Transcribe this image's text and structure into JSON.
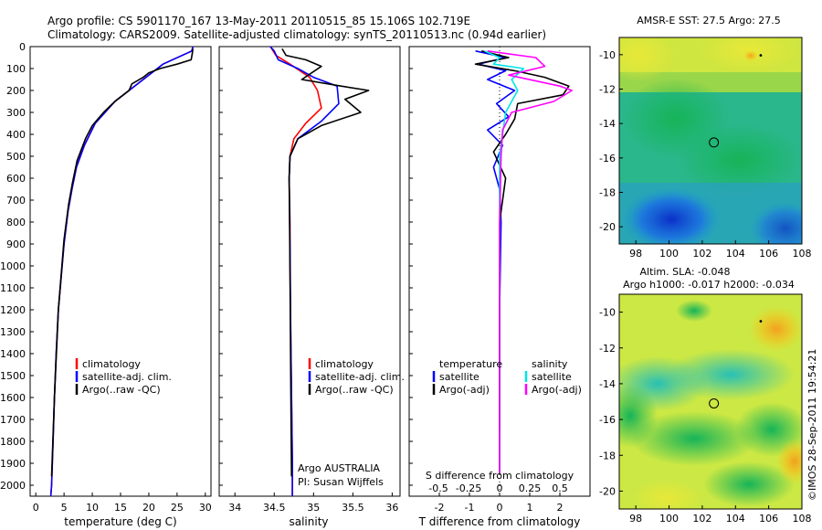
{
  "header": {
    "line1": "Argo profile: CS 5901170_167 13-May-2011 20110515_85 15.106S 102.719E",
    "line2": "Climatology: CARS2009. Satellite-adjusted climatology: synTS_20110513.nc (0.94d earlier)"
  },
  "colors": {
    "climatology": "#ff0000",
    "satellite": "#0000ff",
    "argo": "#000000",
    "salinity_satellite": "#00e5e5",
    "salinity_argo": "#ff00ff"
  },
  "chart_data": [
    {
      "type": "line",
      "id": "temperature",
      "xlabel": "temperature (deg C)",
      "ylabel": "",
      "xlim": [
        -1,
        31
      ],
      "ylim": [
        2050,
        0
      ],
      "xticks": [
        0,
        5,
        10,
        15,
        20,
        25,
        30
      ],
      "yticks": [
        0,
        100,
        200,
        300,
        400,
        500,
        600,
        700,
        800,
        900,
        1000,
        1100,
        1200,
        1300,
        1400,
        1500,
        1600,
        1700,
        1800,
        1900,
        2000
      ],
      "legend": [
        "climatology",
        "satellite-adj. clim.",
        "Argo(..raw -QC)"
      ],
      "series": [
        {
          "name": "climatology",
          "color": "#ff0000",
          "x": [
            27.8,
            27.6,
            22.5,
            19,
            14,
            10.5,
            8.6,
            7.2,
            6.4,
            5.7,
            5,
            4.5,
            4,
            3.6,
            3.3,
            3.05,
            2.8,
            2.65
          ],
          "y": [
            0,
            20,
            80,
            150,
            250,
            350,
            450,
            550,
            650,
            750,
            900,
            1050,
            1200,
            1400,
            1600,
            1800,
            2000,
            2050
          ]
        },
        {
          "name": "satellite-adj. clim.",
          "color": "#0000ff",
          "x": [
            27.8,
            27.6,
            22.5,
            19,
            14,
            10.5,
            8.6,
            7.2,
            6.4,
            5.7,
            5,
            4.5,
            4,
            3.6,
            3.3,
            3.05,
            2.8,
            2.65
          ],
          "y": [
            0,
            20,
            80,
            150,
            250,
            350,
            450,
            550,
            650,
            750,
            900,
            1050,
            1200,
            1400,
            1600,
            1800,
            2000,
            2050
          ]
        },
        {
          "name": "Argo(..raw -QC)",
          "color": "#000000",
          "x": [
            27.8,
            27.7,
            27.5,
            25,
            22,
            20,
            19,
            17,
            16.5,
            14,
            12,
            10,
            8.8,
            7.3,
            6.5,
            5.8,
            5,
            4,
            3.3,
            2.8
          ],
          "y": [
            10,
            30,
            60,
            80,
            100,
            120,
            140,
            170,
            200,
            250,
            300,
            360,
            420,
            520,
            620,
            720,
            880,
            1200,
            1600,
            1960
          ]
        }
      ]
    },
    {
      "type": "line",
      "id": "salinity",
      "xlabel": "salinity",
      "ylabel": "",
      "xlim": [
        33.8,
        36.1
      ],
      "ylim": [
        2050,
        0
      ],
      "xticks": [
        34,
        34.5,
        35,
        35.5,
        36
      ],
      "xticklabels": [
        "34",
        "34.5",
        "35",
        "35.5",
        "36"
      ],
      "legend": [
        "climatology",
        "satellite-adj. clim.",
        "Argo(..raw -QC)"
      ],
      "annotation": [
        "Argo AUSTRALIA",
        "PI: Susan Wijffels"
      ],
      "series": [
        {
          "name": "climatology",
          "color": "#ff0000",
          "x": [
            34.45,
            34.52,
            34.7,
            34.95,
            35.05,
            35.1,
            34.9,
            34.75,
            34.7,
            34.69,
            34.7,
            34.7,
            34.71,
            34.72,
            34.73,
            34.73
          ],
          "y": [
            0,
            40,
            80,
            140,
            200,
            280,
            350,
            420,
            500,
            600,
            800,
            1000,
            1300,
            1600,
            1900,
            2050
          ]
        },
        {
          "name": "satellite-adj. clim.",
          "color": "#0000ff",
          "x": [
            34.45,
            34.5,
            34.55,
            34.8,
            35,
            35.3,
            35.32,
            35.1,
            34.8,
            34.7,
            34.69,
            34.7,
            34.71,
            34.72,
            34.73,
            34.73
          ],
          "y": [
            0,
            20,
            60,
            100,
            140,
            180,
            260,
            340,
            420,
            500,
            600,
            900,
            1300,
            1600,
            1900,
            2050
          ]
        },
        {
          "name": "Argo(..raw -QC)",
          "color": "#000000",
          "x": [
            34.6,
            34.65,
            34.9,
            35.1,
            34.85,
            35.35,
            35.7,
            35.4,
            35.6,
            35.1,
            34.8,
            34.7,
            34.69,
            34.7,
            34.71,
            34.72
          ],
          "y": [
            10,
            40,
            60,
            90,
            150,
            180,
            200,
            240,
            300,
            360,
            420,
            500,
            600,
            1000,
            1500,
            1960
          ]
        }
      ]
    },
    {
      "type": "line",
      "id": "difference",
      "xlabel": "T difference from climatology",
      "x2label": "S difference from climatology",
      "ylabel": "",
      "xlim": [
        -3,
        3
      ],
      "ylim": [
        2050,
        0
      ],
      "xticks": [
        -2,
        -1,
        0,
        1,
        2
      ],
      "xticklabels": [
        "-2",
        "-1",
        "0",
        "1",
        "2"
      ],
      "x2ticks": [
        "-0.5",
        "-0.25",
        "0",
        "0.25",
        "0.5"
      ],
      "legend_groups": [
        {
          "title": "temperature",
          "items": [
            "satellite",
            "Argo(-adj)"
          ]
        },
        {
          "title": "salinity",
          "items": [
            "satellite",
            "Argo(-adj)"
          ]
        }
      ],
      "series": [
        {
          "name": "temperature satellite",
          "color": "#0000ff",
          "x": [
            -0.8,
            0.2,
            -0.7,
            0.2,
            -0.4,
            0.5,
            -0.1,
            0.3,
            -0.4,
            0.1,
            -0.2,
            0,
            0.05,
            0,
            0
          ],
          "y": [
            20,
            50,
            80,
            110,
            150,
            200,
            260,
            320,
            380,
            450,
            550,
            650,
            800,
            1200,
            1750
          ]
        },
        {
          "name": "temperature Argo(-adj)",
          "color": "#000000",
          "x": [
            -0.6,
            0.3,
            -0.8,
            0.5,
            1.5,
            2.3,
            2.1,
            0.6,
            0.5,
            0.2,
            -0.2,
            0.2,
            0,
            0
          ],
          "y": [
            20,
            50,
            80,
            110,
            140,
            180,
            220,
            260,
            330,
            400,
            480,
            600,
            800,
            1950
          ]
        },
        {
          "name": "salinity satellite",
          "color": "#00e5e5",
          "x": [
            -0.5,
            0,
            -0.2,
            0.8,
            0.4,
            0.6,
            0.2,
            0.1,
            0,
            0,
            0,
            0
          ],
          "y": [
            20,
            50,
            80,
            100,
            150,
            200,
            300,
            400,
            500,
            700,
            1200,
            1950
          ]
        },
        {
          "name": "salinity Argo(-adj)",
          "color": "#ff00ff",
          "x": [
            -0.4,
            1.2,
            1.5,
            0.3,
            2.0,
            2.4,
            1.8,
            0.4,
            0.1,
            0.05,
            0,
            0
          ],
          "y": [
            20,
            50,
            90,
            130,
            180,
            200,
            250,
            300,
            380,
            500,
            800,
            1950
          ]
        }
      ]
    },
    {
      "type": "heatmap",
      "id": "sst",
      "title": "AMSR-E SST: 27.5 Argo: 27.5",
      "xlim": [
        97,
        108
      ],
      "ylim": [
        -21,
        -9
      ],
      "xticks": [
        98,
        100,
        102,
        104,
        106,
        108
      ],
      "yticks": [
        -10,
        -12,
        -14,
        -16,
        -18,
        -20
      ],
      "marker": {
        "lon": 102.7,
        "lat": -15.1
      }
    },
    {
      "type": "heatmap",
      "id": "sla",
      "title_line1": "Altim. SLA: -0.048",
      "title_line2": "Argo h1000: -0.017 h2000: -0.034",
      "xlim": [
        97,
        108
      ],
      "ylim": [
        -21,
        -9
      ],
      "xticks": [
        98,
        100,
        102,
        104,
        106,
        108
      ],
      "yticks": [
        -10,
        -12,
        -14,
        -16,
        -18,
        -20
      ],
      "marker": {
        "lon": 102.7,
        "lat": -15.1
      }
    }
  ],
  "side_label": "©IMOS 28-Sep-2011 19:54:21"
}
